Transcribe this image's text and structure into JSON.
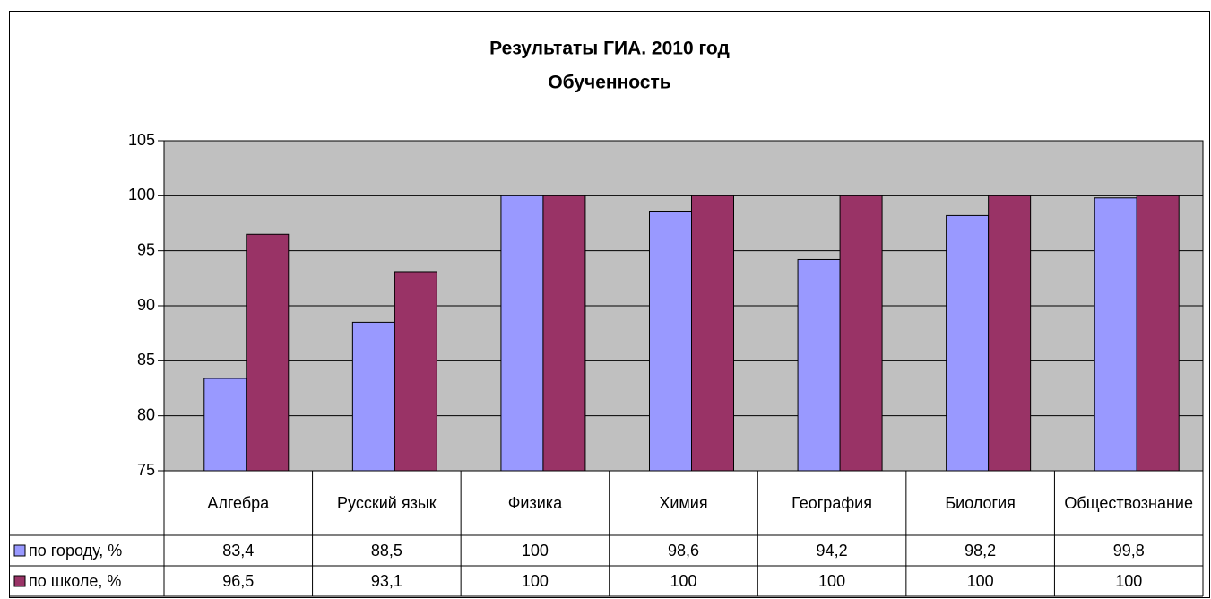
{
  "chart_data": {
    "type": "bar",
    "title": "Результаты ГИА. 2010 год",
    "subtitle": "Обученность",
    "categories": [
      "Алгебра",
      "Русский язык",
      "Физика",
      "Химия",
      "География",
      "Биология",
      "Обществознание"
    ],
    "series": [
      {
        "name": "по городу, %",
        "color": "#9999ff",
        "values": [
          83.4,
          88.5,
          100,
          98.6,
          94.2,
          98.2,
          99.8
        ],
        "value_labels": [
          "83,4",
          "88,5",
          "100",
          "98,6",
          "94,2",
          "98,2",
          "99,8"
        ]
      },
      {
        "name": "по школе, %",
        "color": "#993366",
        "values": [
          96.5,
          93.1,
          100,
          100,
          100,
          100,
          100
        ],
        "value_labels": [
          "96,5",
          "93,1",
          "100",
          "100",
          "100",
          "100",
          "100"
        ]
      }
    ],
    "ylim": [
      75,
      105
    ],
    "yticks": [
      75,
      80,
      85,
      90,
      95,
      100,
      105
    ],
    "grid": true,
    "plot_background": "#c0c0c0"
  }
}
